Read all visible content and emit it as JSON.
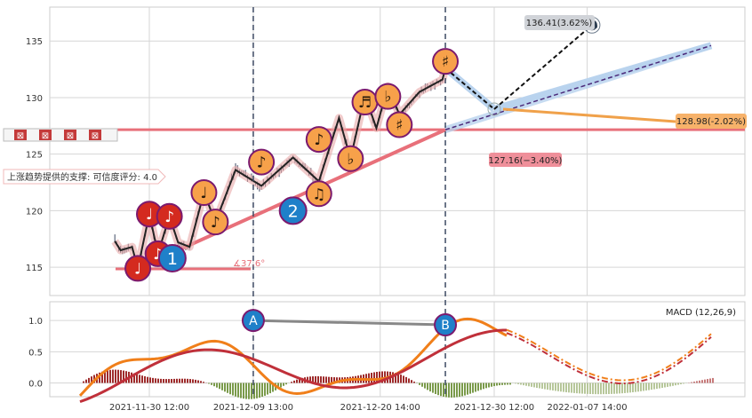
{
  "chart_data": {
    "type": "line",
    "price_panel": {
      "y_ticks": [
        115,
        120,
        125,
        130,
        135
      ],
      "ylim": [
        112.5,
        138
      ],
      "grid": true,
      "close_series": [
        [
          "2021-11-27 12:00",
          117.3
        ],
        [
          "2021-11-28 00:00",
          116.5
        ],
        [
          "2021-11-29 00:00",
          116.8
        ],
        [
          "2021-11-29 12:00",
          114.9
        ],
        [
          "2021-11-30 12:00",
          119.7
        ],
        [
          "2021-12-01 06:00",
          116.2
        ],
        [
          "2021-12-02 06:00",
          119.5
        ],
        [
          "2021-12-03 00:00",
          117.2
        ],
        [
          "2021-12-04 00:00",
          116.8
        ],
        [
          "2021-12-05 06:00",
          121.6
        ],
        [
          "2021-12-06 06:00",
          119.0
        ],
        [
          "2021-12-08 00:00",
          123.6
        ],
        [
          "2021-12-10 06:00",
          122.2
        ],
        [
          "2021-12-13 00:00",
          124.7
        ],
        [
          "2021-12-15 06:00",
          122.6
        ],
        [
          "2021-12-17 00:00",
          128.2
        ],
        [
          "2021-12-18 00:00",
          124.6
        ],
        [
          "2021-12-19 06:00",
          130.2
        ],
        [
          "2021-12-20 06:00",
          127.3
        ],
        [
          "2021-12-21 06:00",
          131.0
        ],
        [
          "2021-12-22 06:00",
          128.5
        ],
        [
          "2021-12-24 00:00",
          130.5
        ],
        [
          "2021-12-26 00:00",
          131.6
        ],
        [
          "2021-12-26 06:00",
          132.6
        ]
      ],
      "support_line": {
        "label": "上涨趋势提供的支撑: 可信度评分: 4.0",
        "from": [
          "2021-11-29 12:00",
          114.9
        ],
        "to": [
          "2021-12-26 06:00",
          127.16
        ]
      },
      "horizontal_level": 127.16,
      "angle_label": "∡37.6°",
      "pattern_points": [
        {
          "label": "1",
          "date": "2021-12-02 12:00",
          "value": 115.8
        },
        {
          "label": "2",
          "date": "2021-12-13 00:00",
          "value": 120.0
        }
      ],
      "note_markers": [
        {
          "symbol": "♩",
          "date": "2021-11-29 12:00",
          "value": 114.9,
          "color": "red"
        },
        {
          "symbol": "♩",
          "date": "2021-11-30 12:00",
          "value": 119.7,
          "color": "red"
        },
        {
          "symbol": "♪",
          "date": "2021-12-01 06:00",
          "value": 116.2,
          "color": "red"
        },
        {
          "symbol": "♪",
          "date": "2021-12-02 06:00",
          "value": 119.5,
          "color": "red"
        },
        {
          "symbol": "♩",
          "date": "2021-12-05 06:00",
          "value": 121.6,
          "color": "orange"
        },
        {
          "symbol": "♪",
          "date": "2021-12-06 06:00",
          "value": 119.0,
          "color": "orange"
        },
        {
          "symbol": "♪",
          "date": "2021-12-10 06:00",
          "value": 124.3,
          "color": "orange"
        },
        {
          "symbol": "♫",
          "date": "2021-12-15 06:00",
          "value": 121.5,
          "color": "orange"
        },
        {
          "symbol": "♪",
          "date": "2021-12-15 06:00",
          "value": 126.3,
          "color": "orange"
        },
        {
          "symbol": "♭",
          "date": "2021-12-18 00:00",
          "value": 124.6,
          "color": "orange"
        },
        {
          "symbol": "♬",
          "date": "2021-12-19 06:00",
          "value": 129.6,
          "color": "orange"
        },
        {
          "symbol": "♭",
          "date": "2021-12-21 06:00",
          "value": 130.1,
          "color": "orange"
        },
        {
          "symbol": "♯",
          "date": "2021-12-22 06:00",
          "value": 127.6,
          "color": "orange"
        },
        {
          "symbol": "♯",
          "date": "2021-12-26 06:00",
          "value": 133.2,
          "color": "orange"
        }
      ],
      "projection": {
        "upper_label": "136.41(3.62%)",
        "upper_value": 136.41,
        "upper_date": "2022-01-08 00:00",
        "mid_label": "128.98(-2.02%)",
        "mid_value": 128.98,
        "mid_date": "2021-12-30 12:00",
        "support_label": "127.16(−3.40%)",
        "support_value": 127.16
      },
      "zoom_buttons": [
        "⊠",
        "⊠",
        "⊠",
        "⊠"
      ]
    },
    "macd_panel": {
      "label": "MACD (12,26,9)",
      "y_ticks": [
        "0.0",
        "0.5",
        "1.0"
      ],
      "ylim": [
        -0.22,
        1.3
      ],
      "markers": [
        {
          "label": "A",
          "date": "2021-12-09 13:00"
        },
        {
          "label": "B",
          "date": "2021-12-26 06:00"
        }
      ]
    },
    "x_ticks": [
      "2021-11-30 12:00",
      "2021-12-09 13:00",
      "2021-12-20 14:00",
      "2021-12-30 12:00",
      "2022-01-07 14:00"
    ]
  },
  "colors": {
    "red_marker": "#d42a1f",
    "orange_marker": "#f7a14a",
    "blue_marker": "#1f80c9",
    "marker_border": "#7b1a6e",
    "support_pink": "#e8707a",
    "gridline": "#d6d6d6"
  }
}
